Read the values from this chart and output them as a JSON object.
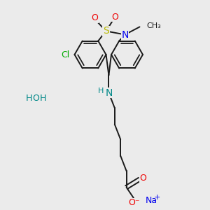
{
  "bg_color": "#ebebeb",
  "bond_color": "#1a1a1a",
  "S_color": "#b8b800",
  "N_color": "#0000ee",
  "O_color": "#ee0000",
  "Cl_color": "#00aa00",
  "Na_color": "#0000ee",
  "HOH_color": "#008888",
  "NH_color": "#008888",
  "bond_lw": 1.4,
  "figsize": [
    3.0,
    3.0
  ],
  "dpi": 100,
  "xlim": [
    0,
    10
  ],
  "ylim": [
    0,
    10
  ]
}
